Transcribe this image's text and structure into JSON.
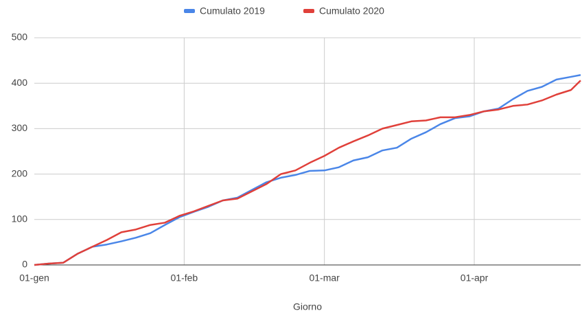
{
  "chart_data": {
    "type": "line",
    "x_label": "Giorno",
    "x": [
      0,
      3,
      6,
      9,
      12,
      15,
      18,
      21,
      24,
      27,
      30,
      33,
      36,
      39,
      42,
      45,
      48,
      51,
      54,
      57,
      60,
      63,
      66,
      69,
      72,
      75,
      78,
      81,
      84,
      87,
      90,
      93,
      96,
      99,
      102,
      105,
      108,
      111,
      113
    ],
    "series": [
      {
        "name": "Cumulato 2019",
        "color": "#4a86e8",
        "values": [
          0,
          3,
          5,
          25,
          40,
          45,
          52,
          60,
          70,
          88,
          105,
          117,
          128,
          142,
          148,
          165,
          182,
          192,
          198,
          207,
          208,
          215,
          230,
          237,
          252,
          258,
          278,
          292,
          310,
          323,
          327,
          338,
          344,
          365,
          383,
          392,
          408,
          414,
          418
        ]
      },
      {
        "name": "Cumulato 2020",
        "color": "#e0403a",
        "values": [
          0,
          3,
          5,
          25,
          40,
          55,
          72,
          78,
          88,
          93,
          108,
          118,
          130,
          142,
          146,
          162,
          178,
          200,
          208,
          225,
          240,
          258,
          272,
          285,
          300,
          308,
          316,
          318,
          325,
          325,
          330,
          338,
          342,
          350,
          353,
          362,
          375,
          385,
          406
        ]
      }
    ],
    "xlim": [
      0,
      113
    ],
    "xticks": [
      {
        "value": 0,
        "label": "01-gen"
      },
      {
        "value": 31,
        "label": "01-feb"
      },
      {
        "value": 60,
        "label": "01-mar"
      },
      {
        "value": 91,
        "label": "01-apr"
      }
    ],
    "ylim": [
      0,
      500
    ],
    "yticks": [
      0,
      100,
      200,
      300,
      400,
      500
    ],
    "grid": true,
    "legend": "top"
  }
}
